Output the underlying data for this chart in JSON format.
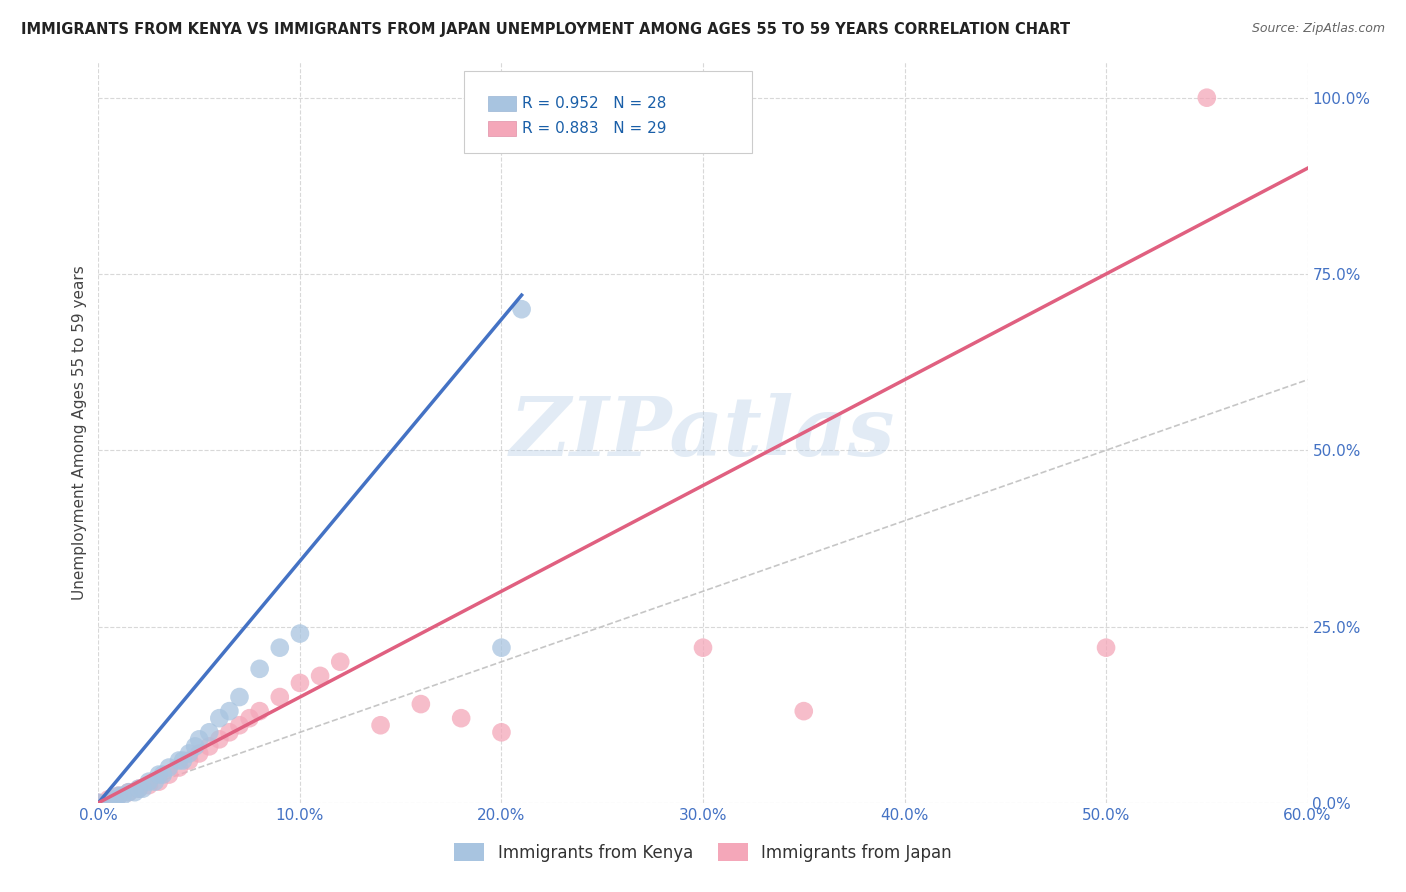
{
  "title": "IMMIGRANTS FROM KENYA VS IMMIGRANTS FROM JAPAN UNEMPLOYMENT AMONG AGES 55 TO 59 YEARS CORRELATION CHART",
  "source": "Source: ZipAtlas.com",
  "xlabel": "",
  "ylabel": "Unemployment Among Ages 55 to 59 years",
  "xlim": [
    0.0,
    0.6
  ],
  "ylim": [
    0.0,
    1.05
  ],
  "xtick_labels": [
    "0.0%",
    "10.0%",
    "20.0%",
    "30.0%",
    "40.0%",
    "50.0%",
    "60.0%"
  ],
  "xtick_values": [
    0.0,
    0.1,
    0.2,
    0.3,
    0.4,
    0.5,
    0.6
  ],
  "ytick_labels": [
    "0.0%",
    "25.0%",
    "50.0%",
    "75.0%",
    "100.0%"
  ],
  "ytick_values": [
    0.0,
    0.25,
    0.5,
    0.75,
    1.0
  ],
  "kenya_R": 0.952,
  "kenya_N": 28,
  "japan_R": 0.883,
  "japan_N": 29,
  "kenya_color": "#a8c4e0",
  "kenya_line_color": "#4472c4",
  "japan_color": "#f4a7b9",
  "japan_line_color": "#e06080",
  "diag_line_color": "#c0c0c0",
  "background_color": "#ffffff",
  "grid_color": "#d8d8d8",
  "watermark_text": "ZIPatlas",
  "kenya_x": [
    0.0,
    0.005,
    0.008,
    0.01,
    0.012,
    0.015,
    0.018,
    0.02,
    0.022,
    0.025,
    0.028,
    0.03,
    0.032,
    0.035,
    0.04,
    0.042,
    0.045,
    0.048,
    0.05,
    0.055,
    0.06,
    0.065,
    0.07,
    0.08,
    0.09,
    0.1,
    0.2,
    0.21
  ],
  "kenya_y": [
    0.0,
    0.0,
    0.005,
    0.01,
    0.01,
    0.015,
    0.015,
    0.02,
    0.02,
    0.03,
    0.03,
    0.04,
    0.04,
    0.05,
    0.06,
    0.06,
    0.07,
    0.08,
    0.09,
    0.1,
    0.12,
    0.13,
    0.15,
    0.19,
    0.22,
    0.24,
    0.22,
    0.7
  ],
  "japan_x": [
    0.0,
    0.005,
    0.01,
    0.015,
    0.02,
    0.025,
    0.03,
    0.035,
    0.04,
    0.045,
    0.05,
    0.055,
    0.06,
    0.065,
    0.07,
    0.075,
    0.08,
    0.09,
    0.1,
    0.11,
    0.12,
    0.14,
    0.16,
    0.18,
    0.2,
    0.3,
    0.35,
    0.5,
    0.55
  ],
  "japan_y": [
    0.0,
    0.005,
    0.01,
    0.015,
    0.02,
    0.025,
    0.03,
    0.04,
    0.05,
    0.06,
    0.07,
    0.08,
    0.09,
    0.1,
    0.11,
    0.12,
    0.13,
    0.15,
    0.17,
    0.18,
    0.2,
    0.11,
    0.14,
    0.12,
    0.1,
    0.22,
    0.13,
    0.22,
    1.0
  ],
  "kenya_line_x": [
    0.0,
    0.21
  ],
  "kenya_line_y": [
    0.0,
    0.72
  ],
  "japan_line_x": [
    0.0,
    0.6
  ],
  "japan_line_y": [
    0.0,
    0.9
  ],
  "diag_line_x": [
    0.0,
    0.6
  ],
  "diag_line_y": [
    0.0,
    0.6
  ]
}
